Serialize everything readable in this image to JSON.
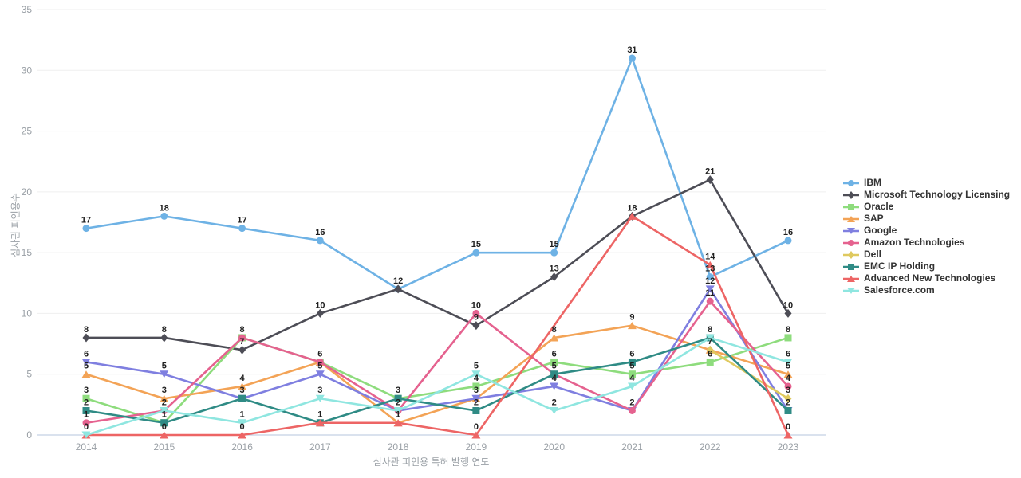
{
  "chart_data": {
    "type": "line",
    "x": [
      "2014",
      "2015",
      "2016",
      "2017",
      "2018",
      "2019",
      "2020",
      "2021",
      "2022",
      "2023"
    ],
    "xlabel": "심사관 피인용 특허 발행 연도",
    "ylabel": "심사관 피인용수",
    "ylim": [
      0,
      35
    ],
    "yticks": [
      0,
      5,
      10,
      15,
      20,
      25,
      30,
      35
    ],
    "grid": true,
    "legend_position": "right",
    "series": [
      {
        "name": "IBM",
        "slug": "ibm",
        "color": "#6eb2e5",
        "symbol": "circle",
        "values": [
          17,
          18,
          17,
          16,
          12,
          15,
          15,
          31,
          13,
          16
        ]
      },
      {
        "name": "Microsoft Technology Licensing",
        "slug": "microsoft-technology-licensing",
        "color": "#4d4d56",
        "symbol": "diamond",
        "values": [
          8,
          8,
          7,
          10,
          12,
          9,
          13,
          18,
          21,
          10
        ]
      },
      {
        "name": "Oracle",
        "slug": "oracle",
        "color": "#8edc7d",
        "symbol": "square",
        "values": [
          3,
          1,
          8,
          6,
          3,
          4,
          6,
          5,
          6,
          8
        ]
      },
      {
        "name": "SAP",
        "slug": "sap",
        "color": "#f3a356",
        "symbol": "triangle-up",
        "values": [
          5,
          3,
          4,
          6,
          1,
          3,
          8,
          9,
          7,
          5
        ]
      },
      {
        "name": "Google",
        "slug": "google",
        "color": "#7f7fe0",
        "symbol": "triangle-down",
        "values": [
          6,
          5,
          3,
          5,
          2,
          3,
          4,
          2,
          12,
          2
        ]
      },
      {
        "name": "Amazon Technologies",
        "slug": "amazon-technologies",
        "color": "#e5628f",
        "symbol": "circle",
        "values": [
          1,
          2,
          8,
          6,
          2,
          10,
          5,
          2,
          11,
          4
        ]
      },
      {
        "name": "Dell",
        "slug": "dell",
        "color": "#dfc95f",
        "symbol": "diamond",
        "values": [
          null,
          null,
          null,
          null,
          null,
          null,
          null,
          null,
          7,
          3
        ]
      },
      {
        "name": "EMC IP Holding",
        "slug": "emc-ip-holding",
        "color": "#2f8b85",
        "symbol": "square",
        "values": [
          2,
          1,
          3,
          1,
          3,
          2,
          5,
          6,
          8,
          2
        ]
      },
      {
        "name": "Advanced New Technologies",
        "slug": "advanced-new-technologies",
        "color": "#ed6565",
        "symbol": "triangle-up",
        "values": [
          0,
          0,
          0,
          1,
          1,
          0,
          null,
          18,
          14,
          0
        ]
      },
      {
        "name": "Salesforce.com",
        "slug": "salesforce-com",
        "color": "#8fe6e0",
        "symbol": "triangle-down",
        "values": [
          0,
          2,
          1,
          3,
          2,
          5,
          2,
          4,
          8,
          6
        ]
      }
    ]
  }
}
